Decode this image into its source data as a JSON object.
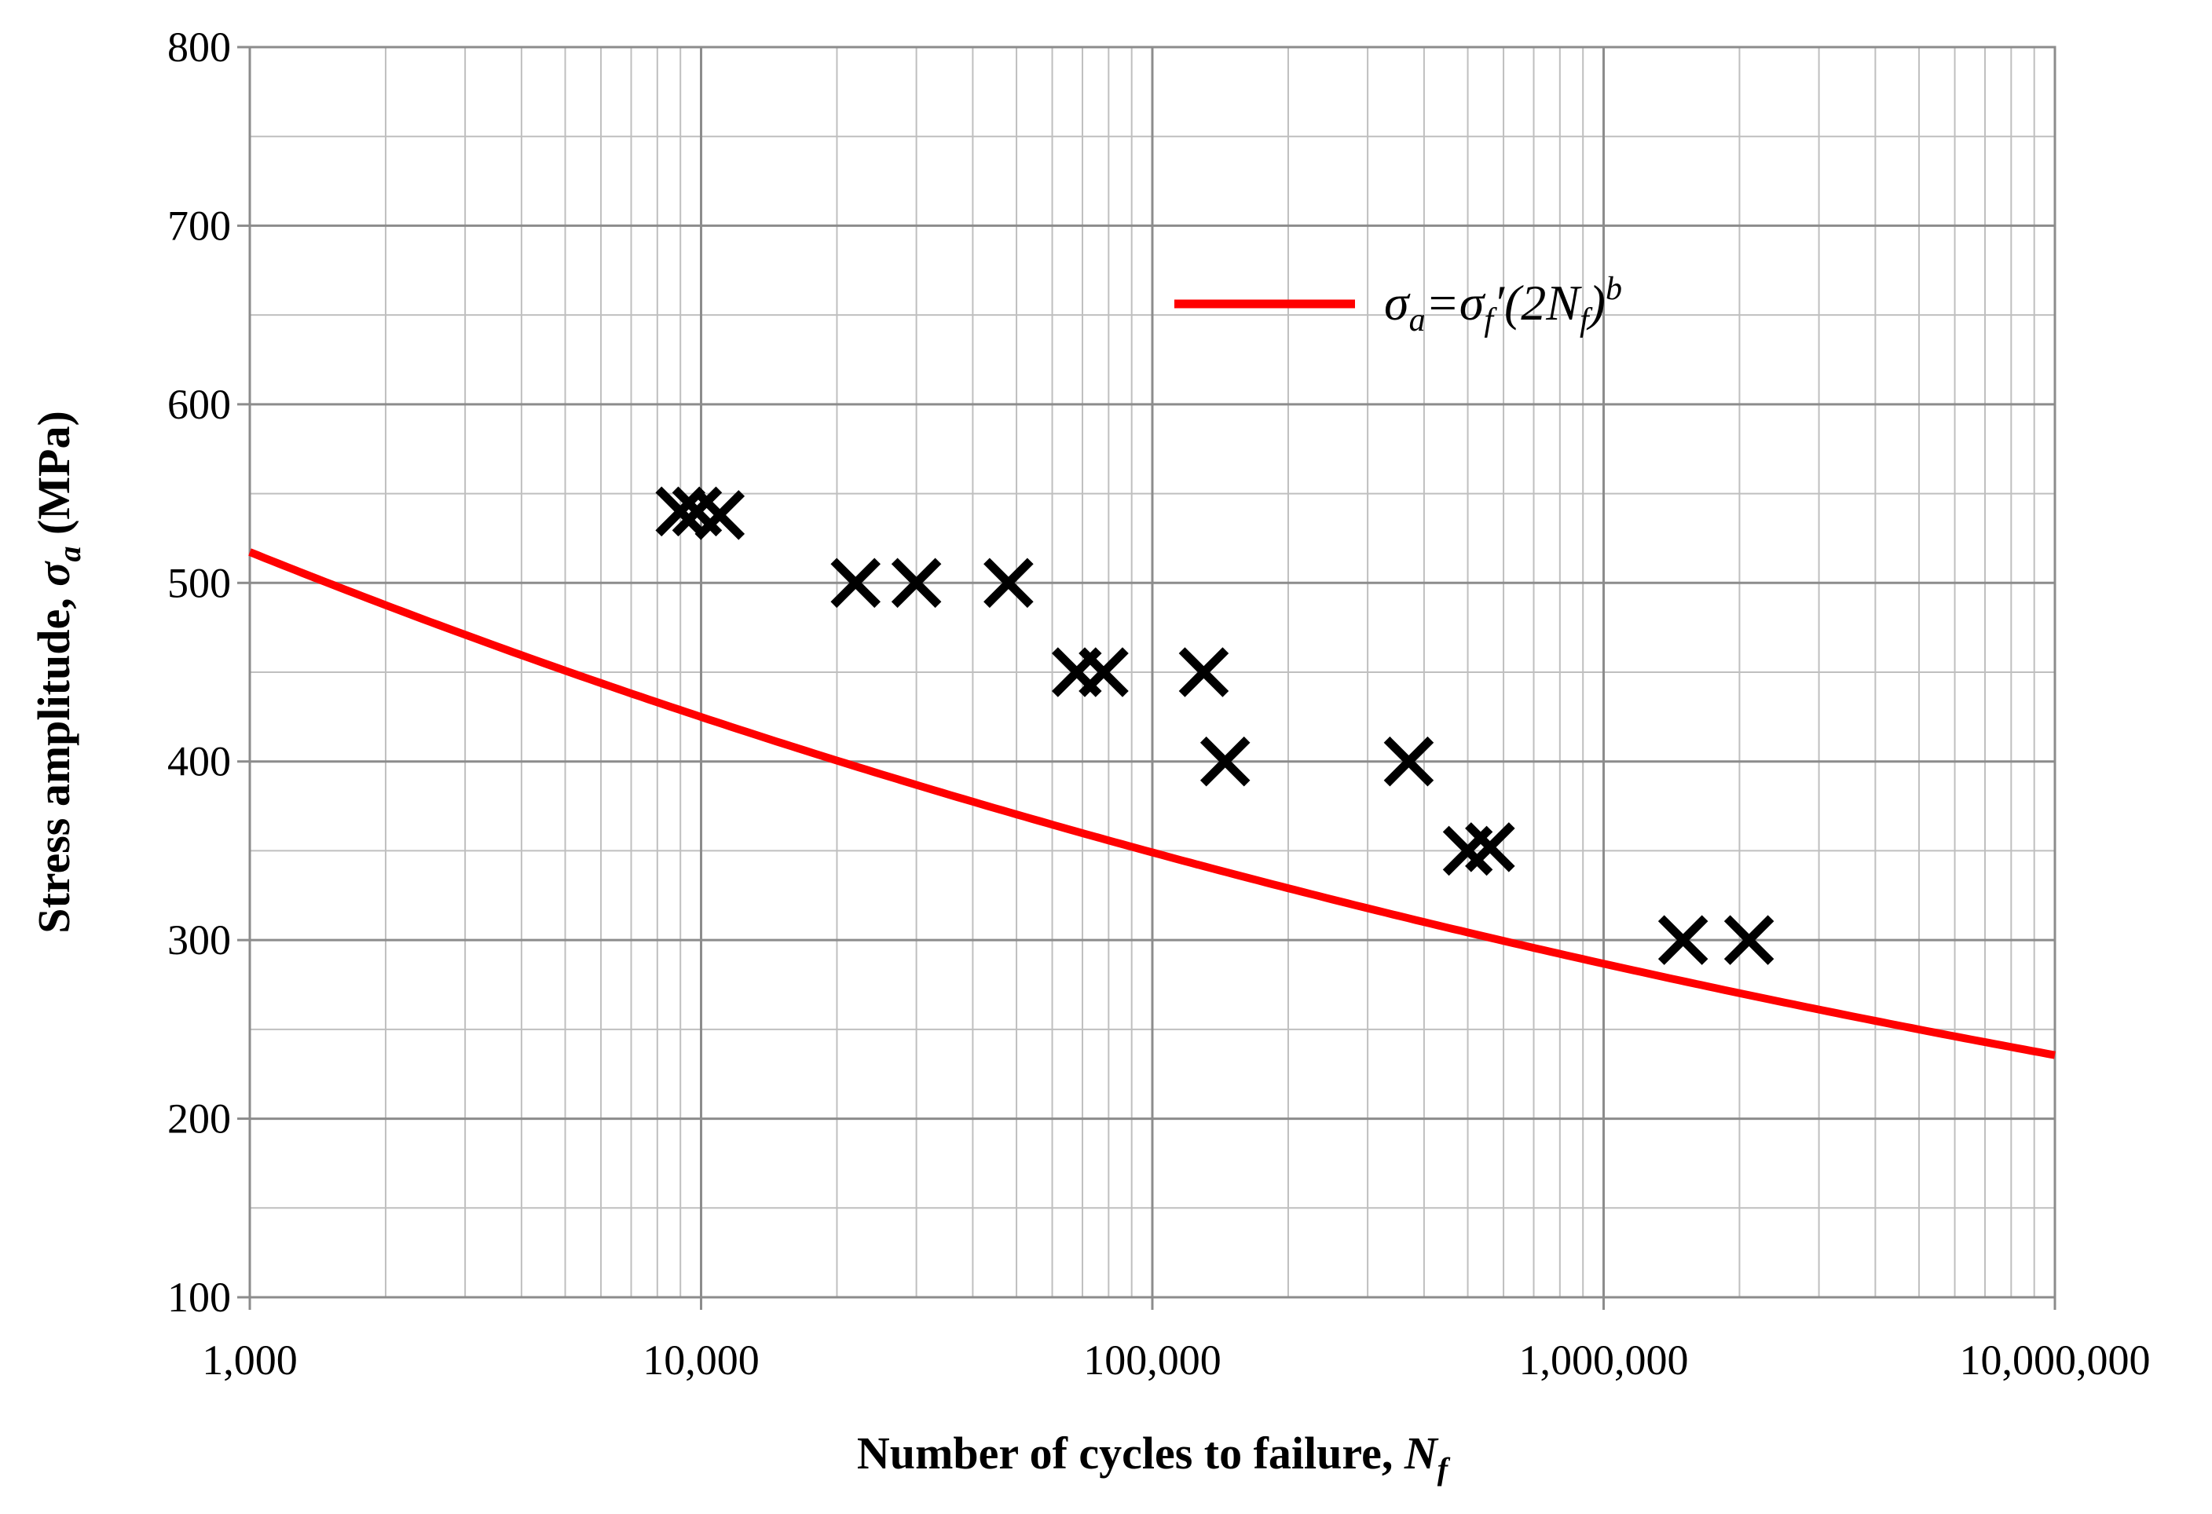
{
  "chart_data": {
    "type": "scatter",
    "xscale": "log",
    "xlim": [
      1000,
      10000000
    ],
    "ylim": [
      100,
      800
    ],
    "grid": true,
    "legend_position": "top-right",
    "xlabel": {
      "main": "Number of cycles to failure, ",
      "sym": "N",
      "sub": "f"
    },
    "ylabel": {
      "main": "Stress amplitude, ",
      "sym": "σ",
      "sub": "a",
      "unit": " (MPa)"
    },
    "x_ticks": [
      {
        "value": 1000,
        "label": "1,000"
      },
      {
        "value": 10000,
        "label": "10,000"
      },
      {
        "value": 100000,
        "label": "100,000"
      },
      {
        "value": 1000000,
        "label": "1,000,000"
      },
      {
        "value": 10000000,
        "label": "10,000,000"
      }
    ],
    "y_ticks": [
      {
        "value": 100,
        "label": "100"
      },
      {
        "value": 200,
        "label": "200"
      },
      {
        "value": 300,
        "label": "300"
      },
      {
        "value": 400,
        "label": "400"
      },
      {
        "value": 500,
        "label": "500"
      },
      {
        "value": 600,
        "label": "600"
      },
      {
        "value": 700,
        "label": "700"
      },
      {
        "value": 800,
        "label": "800"
      }
    ],
    "series": [
      {
        "marker": "x",
        "color": "#000000",
        "points": [
          {
            "x": 9000,
            "y": 540
          },
          {
            "x": 9800,
            "y": 540
          },
          {
            "x": 11000,
            "y": 538
          },
          {
            "x": 22000,
            "y": 500
          },
          {
            "x": 30000,
            "y": 500
          },
          {
            "x": 48000,
            "y": 500
          },
          {
            "x": 68000,
            "y": 450
          },
          {
            "x": 78000,
            "y": 450
          },
          {
            "x": 130000,
            "y": 450
          },
          {
            "x": 145000,
            "y": 400
          },
          {
            "x": 370000,
            "y": 400
          },
          {
            "x": 500000,
            "y": 350
          },
          {
            "x": 560000,
            "y": 352
          },
          {
            "x": 1500000,
            "y": 300
          },
          {
            "x": 2100000,
            "y": 300
          }
        ]
      },
      {
        "marker": "line",
        "color": "#ff0000",
        "legend": {
          "t1": "σ",
          "t2": "a",
          "t3": "=σ",
          "t4": "f",
          "t5": "′(2N",
          "t6": "f",
          "t7": ")",
          "t8": "b"
        },
        "model": {
          "coefficient": 990,
          "exponent": -0.0854
        }
      }
    ]
  }
}
